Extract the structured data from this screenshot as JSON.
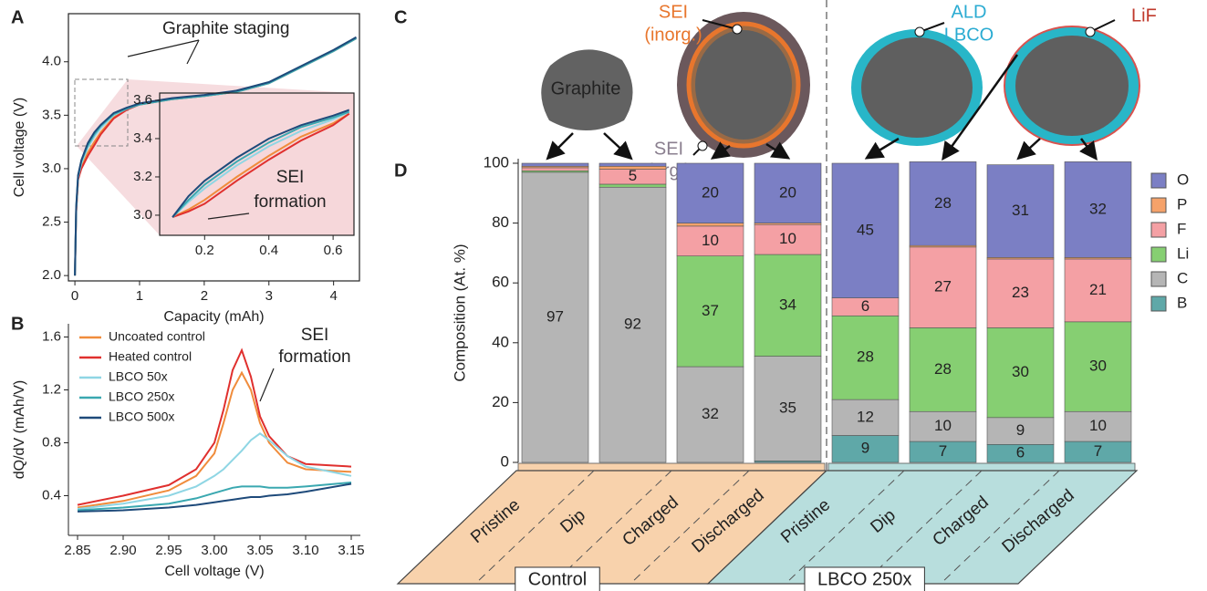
{
  "chart_data": [
    {
      "panel": "A",
      "type": "line",
      "xlabel": "Capacity (mAh)",
      "ylabel": "Cell voltage (V)",
      "xlim": [
        -0.1,
        4.4
      ],
      "ylim": [
        1.95,
        4.45
      ],
      "xticks": [
        0,
        1,
        2,
        3,
        4
      ],
      "yticks": [
        {
          "value": 2,
          "label": "2.0"
        },
        2.5,
        {
          "value": 3,
          "label": "3.0"
        },
        3.5,
        {
          "value": 4,
          "label": "4.0"
        }
      ],
      "annotation": [
        "Graphite staging"
      ],
      "x": [
        0,
        0.02,
        0.05,
        0.1,
        0.2,
        0.3,
        0.4,
        0.6,
        0.8,
        1.0,
        1.5,
        2.0,
        2.5,
        3.0,
        3.5,
        4.0,
        4.35
      ],
      "series": [
        {
          "color": "#f08c3c",
          "values": [
            2.0,
            2.6,
            2.9,
            3.02,
            3.15,
            3.25,
            3.34,
            3.48,
            3.56,
            3.6,
            3.65,
            3.68,
            3.72,
            3.8,
            3.95,
            4.1,
            4.22
          ]
        },
        {
          "color": "#e0302e",
          "values": [
            2.0,
            2.6,
            2.9,
            3.0,
            3.12,
            3.22,
            3.32,
            3.47,
            3.55,
            3.6,
            3.65,
            3.68,
            3.72,
            3.8,
            3.95,
            4.1,
            4.22
          ]
        },
        {
          "color": "#8fd6e4",
          "values": [
            2.0,
            2.62,
            2.92,
            3.05,
            3.2,
            3.3,
            3.38,
            3.5,
            3.56,
            3.6,
            3.65,
            3.68,
            3.72,
            3.8,
            3.95,
            4.1,
            4.22
          ]
        },
        {
          "color": "#3aa8b0",
          "values": [
            2.0,
            2.63,
            2.93,
            3.07,
            3.22,
            3.32,
            3.4,
            3.51,
            3.56,
            3.6,
            3.65,
            3.68,
            3.72,
            3.8,
            3.95,
            4.1,
            4.22
          ]
        },
        {
          "color": "#1e4a7a",
          "values": [
            2.0,
            2.64,
            2.94,
            3.08,
            3.24,
            3.34,
            3.41,
            3.52,
            3.57,
            3.61,
            3.66,
            3.69,
            3.73,
            3.81,
            3.96,
            4.11,
            4.23
          ]
        }
      ]
    },
    {
      "type": "line",
      "xlim": [
        0.06,
        0.665
      ],
      "ylim": [
        2.895,
        3.638
      ],
      "xticks": [
        0.2,
        0.4,
        0.6
      ],
      "yticks": [
        {
          "value": 3,
          "label": "3.0"
        },
        3.2,
        3.4,
        3.6
      ],
      "annotation": [
        "SEI",
        "formation"
      ],
      "x": [
        0.1,
        0.15,
        0.2,
        0.3,
        0.4,
        0.5,
        0.6,
        0.65
      ],
      "series": [
        {
          "color": "#f08c3c",
          "values": [
            2.99,
            3.03,
            3.08,
            3.2,
            3.31,
            3.41,
            3.48,
            3.53
          ]
        },
        {
          "color": "#e0302e",
          "values": [
            2.99,
            3.02,
            3.06,
            3.18,
            3.29,
            3.39,
            3.47,
            3.53
          ]
        },
        {
          "color": "#8fd6e4",
          "values": [
            2.99,
            3.07,
            3.14,
            3.26,
            3.36,
            3.44,
            3.5,
            3.54
          ]
        },
        {
          "color": "#3aa8b0",
          "values": [
            2.99,
            3.08,
            3.16,
            3.28,
            3.38,
            3.46,
            3.51,
            3.54
          ]
        },
        {
          "color": "#1e4a7a",
          "values": [
            2.99,
            3.1,
            3.18,
            3.3,
            3.4,
            3.47,
            3.52,
            3.55
          ]
        }
      ]
    },
    {
      "panel": "B",
      "type": "line",
      "xlabel": "Cell voltage (V)",
      "ylabel": "dQ/dV (mAh/V)",
      "xlim": [
        2.84,
        3.16
      ],
      "ylim": [
        0.1,
        1.7
      ],
      "xticks": [
        2.85,
        {
          "value": 2.9,
          "label": "2.90"
        },
        2.95,
        {
          "value": 3,
          "label": "3.00"
        },
        3.05,
        {
          "value": 3.1,
          "label": "3.10"
        },
        3.15
      ],
      "yticks": [
        0.4,
        0.8,
        1.2,
        1.6
      ],
      "legend": "upper left",
      "annotation": [
        "SEI",
        "formation"
      ],
      "x": [
        2.85,
        2.9,
        2.95,
        2.98,
        3.0,
        3.01,
        3.02,
        3.03,
        3.04,
        3.05,
        3.06,
        3.08,
        3.1,
        3.15
      ],
      "series": [
        {
          "name": "Uncoated control",
          "color": "#f08c3c",
          "values": [
            0.31,
            0.36,
            0.44,
            0.55,
            0.72,
            0.95,
            1.2,
            1.33,
            1.2,
            0.95,
            0.8,
            0.65,
            0.6,
            0.58
          ]
        },
        {
          "name": "Heated control",
          "color": "#e0302e",
          "values": [
            0.33,
            0.4,
            0.48,
            0.6,
            0.8,
            1.05,
            1.35,
            1.5,
            1.3,
            1.0,
            0.85,
            0.7,
            0.64,
            0.62
          ]
        },
        {
          "name": "LBCO 50x",
          "color": "#8fd6e4",
          "values": [
            0.3,
            0.34,
            0.4,
            0.47,
            0.55,
            0.6,
            0.67,
            0.74,
            0.82,
            0.87,
            0.82,
            0.7,
            0.62,
            0.55
          ]
        },
        {
          "name": "LBCO 250x",
          "color": "#3aa8b0",
          "values": [
            0.29,
            0.31,
            0.34,
            0.38,
            0.42,
            0.44,
            0.46,
            0.47,
            0.47,
            0.47,
            0.46,
            0.46,
            0.47,
            0.5
          ]
        },
        {
          "name": "LBCO 500x",
          "color": "#1e4a7a",
          "values": [
            0.28,
            0.29,
            0.31,
            0.33,
            0.35,
            0.36,
            0.37,
            0.38,
            0.39,
            0.39,
            0.4,
            0.41,
            0.43,
            0.49
          ]
        }
      ]
    },
    {
      "panel": "D",
      "type": "stacked-bar",
      "ylabel": "Composition (At. %)",
      "ylim": [
        0,
        100
      ],
      "yticks": [
        0,
        20,
        40,
        60,
        80,
        100
      ],
      "categories": [
        "Pristine",
        "Dip",
        "Charged",
        "Discharged",
        "Pristine",
        "Dip",
        "Charged",
        "Discharged"
      ],
      "groups": [
        {
          "name": "Control",
          "color": "#f8d2ac"
        },
        {
          "name": "LBCO 250x",
          "color": "#b8dedd"
        }
      ],
      "series": [
        {
          "name": "B",
          "color": "#5fa8a8",
          "values": [
            0,
            0,
            0,
            0.5,
            9,
            7,
            6,
            7
          ],
          "value_labels": [
            null,
            null,
            null,
            null,
            "9",
            "7",
            "6",
            "7"
          ]
        },
        {
          "name": "C",
          "color": "#b5b5b5",
          "values": [
            97,
            92,
            32,
            35,
            12,
            10,
            9,
            10
          ],
          "value_labels": [
            "97",
            "92",
            "32",
            "35",
            "12",
            "10",
            "9",
            "10"
          ]
        },
        {
          "name": "Li",
          "color": "#86cf72",
          "values": [
            0.5,
            1,
            37,
            34,
            28,
            28,
            30,
            30
          ],
          "value_labels": [
            null,
            null,
            "37",
            "34",
            "28",
            "28",
            "30",
            "30"
          ]
        },
        {
          "name": "F",
          "color": "#f4a0a4",
          "values": [
            1,
            5,
            10,
            10,
            6,
            27,
            23,
            21
          ],
          "value_labels": [
            null,
            "5",
            "10",
            "10",
            "6",
            "27",
            "23",
            "21"
          ]
        },
        {
          "name": "P",
          "color": "#f5a26a",
          "values": [
            0.5,
            1,
            1,
            0.5,
            0,
            0.5,
            0.5,
            0.5
          ],
          "value_labels": [
            null,
            null,
            null,
            null,
            null,
            null,
            null,
            null
          ]
        },
        {
          "name": "O",
          "color": "#7b7fc4",
          "values": [
            1,
            1,
            20,
            20,
            45,
            28,
            31,
            32
          ],
          "value_labels": [
            null,
            null,
            "20",
            "20",
            "45",
            "28",
            "31",
            "32"
          ]
        }
      ]
    }
  ],
  "diagram": {
    "panel": "C",
    "graphite": "Graphite",
    "sei_inorg": [
      "SEI",
      "(inorg.)"
    ],
    "sei_org": [
      "SEI",
      "(org.)"
    ],
    "ald_lbco": [
      "ALD",
      "LBCO"
    ],
    "lif": "LiF"
  }
}
